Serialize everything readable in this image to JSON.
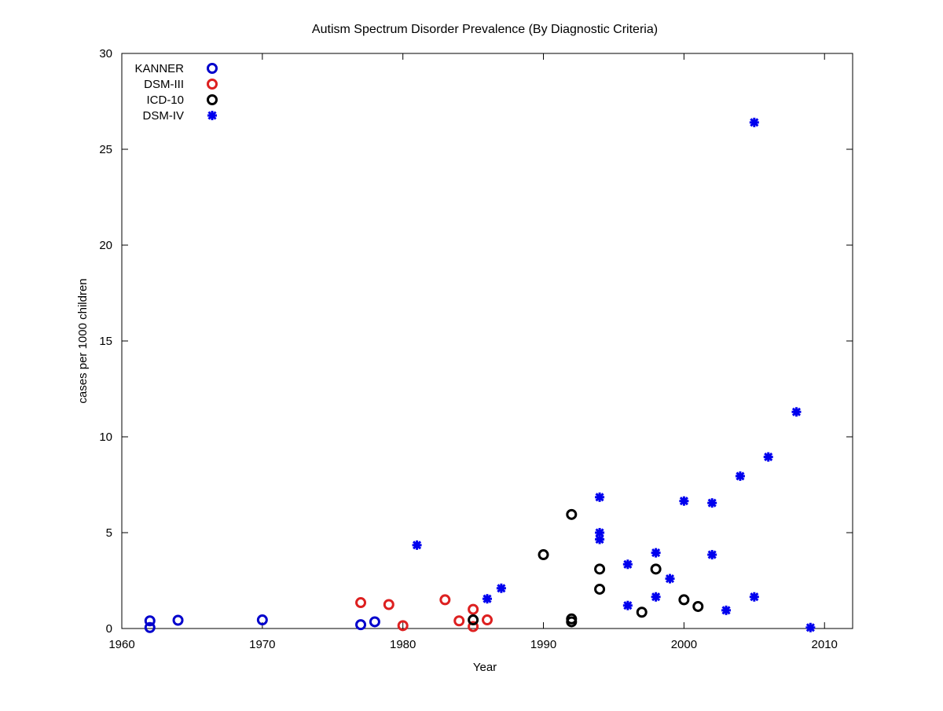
{
  "chart_data": {
    "type": "scatter",
    "title": "Autism Spectrum Disorder Prevalence (By Diagnostic Criteria)",
    "xlabel": "Year",
    "ylabel": "cases per 1000 children",
    "xlim": [
      1960,
      2012
    ],
    "ylim": [
      0,
      30
    ],
    "xticks": [
      1960,
      1970,
      1980,
      1990,
      2000,
      2010
    ],
    "yticks": [
      0,
      5,
      10,
      15,
      20,
      25,
      30
    ],
    "grid": false,
    "legend_position": "top-left",
    "series": [
      {
        "name": "KANNER",
        "marker": "circle",
        "color": "#0000cc",
        "points": [
          {
            "x": 1962,
            "y": 0.4
          },
          {
            "x": 1962,
            "y": 0.05
          },
          {
            "x": 1964,
            "y": 0.43
          },
          {
            "x": 1970,
            "y": 0.45
          },
          {
            "x": 1977,
            "y": 0.2
          },
          {
            "x": 1978,
            "y": 0.35
          }
        ]
      },
      {
        "name": "DSM-III",
        "marker": "circle",
        "color": "#dd2020",
        "points": [
          {
            "x": 1977,
            "y": 1.35
          },
          {
            "x": 1979,
            "y": 1.25
          },
          {
            "x": 1980,
            "y": 0.15
          },
          {
            "x": 1983,
            "y": 1.5
          },
          {
            "x": 1984,
            "y": 0.4
          },
          {
            "x": 1985,
            "y": 1.0
          },
          {
            "x": 1985,
            "y": 0.1
          },
          {
            "x": 1986,
            "y": 0.45
          }
        ]
      },
      {
        "name": "ICD-10",
        "marker": "circle",
        "color": "#000000",
        "points": [
          {
            "x": 1985,
            "y": 0.45
          },
          {
            "x": 1990,
            "y": 3.85
          },
          {
            "x": 1992,
            "y": 5.95
          },
          {
            "x": 1992,
            "y": 0.5
          },
          {
            "x": 1992,
            "y": 0.35
          },
          {
            "x": 1994,
            "y": 3.1
          },
          {
            "x": 1994,
            "y": 2.05
          },
          {
            "x": 1997,
            "y": 0.85
          },
          {
            "x": 1998,
            "y": 3.1
          },
          {
            "x": 2000,
            "y": 1.5
          },
          {
            "x": 2001,
            "y": 1.15
          }
        ]
      },
      {
        "name": "DSM-IV",
        "marker": "star",
        "color": "#0000ee",
        "points": [
          {
            "x": 1981,
            "y": 4.35
          },
          {
            "x": 1986,
            "y": 1.55
          },
          {
            "x": 1987,
            "y": 2.1
          },
          {
            "x": 1994,
            "y": 6.85
          },
          {
            "x": 1994,
            "y": 5.0
          },
          {
            "x": 1994,
            "y": 4.65
          },
          {
            "x": 1996,
            "y": 3.35
          },
          {
            "x": 1996,
            "y": 1.2
          },
          {
            "x": 1998,
            "y": 3.95
          },
          {
            "x": 1998,
            "y": 1.65
          },
          {
            "x": 1999,
            "y": 2.6
          },
          {
            "x": 2000,
            "y": 6.65
          },
          {
            "x": 2002,
            "y": 6.55
          },
          {
            "x": 2002,
            "y": 3.85
          },
          {
            "x": 2003,
            "y": 0.95
          },
          {
            "x": 2004,
            "y": 7.95
          },
          {
            "x": 2005,
            "y": 26.4
          },
          {
            "x": 2005,
            "y": 1.65
          },
          {
            "x": 2006,
            "y": 8.95
          },
          {
            "x": 2008,
            "y": 11.3
          },
          {
            "x": 2009,
            "y": 0.05
          }
        ]
      }
    ]
  }
}
